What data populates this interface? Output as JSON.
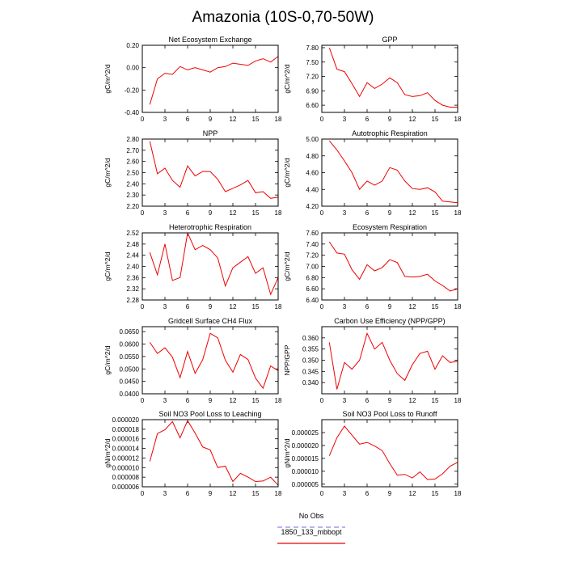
{
  "title": "Amazonia (10S-0,70-50W)",
  "legend": [
    {
      "label": "No Obs",
      "color": "#8888ee",
      "dashed": true
    },
    {
      "label": "1850_133_mbbopt",
      "color": "#ee0000",
      "dashed": false
    }
  ],
  "chart_data": [
    {
      "type": "line",
      "title": "Net Ecosystem Exchange",
      "ylabel": "gC/m^2/d",
      "xlim": [
        0,
        18
      ],
      "xticks": [
        0,
        3,
        6,
        9,
        12,
        15,
        18
      ],
      "ylim": [
        -0.4,
        0.2
      ],
      "yticks": [
        "-0.40",
        "-0.20",
        "0.00",
        "0.20"
      ],
      "x": [
        1,
        2,
        3,
        4,
        5,
        6,
        7,
        8,
        9,
        10,
        11,
        12,
        13,
        14,
        15,
        16,
        17,
        18
      ],
      "series": [
        {
          "color": "#ee0000",
          "values": [
            -0.33,
            -0.1,
            -0.05,
            -0.06,
            0.01,
            -0.02,
            0.0,
            -0.02,
            -0.04,
            0.0,
            0.01,
            0.04,
            0.03,
            0.02,
            0.06,
            0.08,
            0.05,
            0.1
          ]
        }
      ]
    },
    {
      "type": "line",
      "title": "GPP",
      "ylabel": "gC/m^2/d",
      "xlim": [
        0,
        18
      ],
      "xticks": [
        0,
        3,
        6,
        9,
        12,
        15,
        18
      ],
      "ylim": [
        6.45,
        7.85
      ],
      "yticks": [
        "6.60",
        "6.90",
        "7.20",
        "7.50",
        "7.80"
      ],
      "x": [
        1,
        2,
        3,
        4,
        5,
        6,
        7,
        8,
        9,
        10,
        11,
        12,
        13,
        14,
        15,
        16,
        17,
        18
      ],
      "series": [
        {
          "color": "#ee0000",
          "values": [
            7.8,
            7.35,
            7.3,
            7.05,
            6.78,
            7.07,
            6.95,
            7.04,
            7.17,
            7.07,
            6.82,
            6.78,
            6.8,
            6.86,
            6.7,
            6.6,
            6.56,
            6.56
          ]
        }
      ]
    },
    {
      "type": "line",
      "title": "NPP",
      "ylabel": "gC/m^2/d",
      "xlim": [
        0,
        18
      ],
      "xticks": [
        0,
        3,
        6,
        9,
        12,
        15,
        18
      ],
      "ylim": [
        2.2,
        2.8
      ],
      "yticks": [
        "2.20",
        "2.30",
        "2.40",
        "2.50",
        "2.60",
        "2.70",
        "2.80"
      ],
      "x": [
        1,
        2,
        3,
        4,
        5,
        6,
        7,
        8,
        9,
        10,
        11,
        12,
        13,
        14,
        15,
        16,
        17,
        18
      ],
      "series": [
        {
          "color": "#ee0000",
          "values": [
            2.78,
            2.49,
            2.54,
            2.43,
            2.37,
            2.56,
            2.47,
            2.51,
            2.51,
            2.44,
            2.33,
            2.36,
            2.39,
            2.43,
            2.32,
            2.33,
            2.27,
            2.28
          ]
        }
      ]
    },
    {
      "type": "line",
      "title": "Autotrophic Respiration",
      "ylabel": "gC/m^2/d",
      "xlim": [
        0,
        18
      ],
      "xticks": [
        0,
        3,
        6,
        9,
        12,
        15,
        18
      ],
      "ylim": [
        4.2,
        5.0
      ],
      "yticks": [
        "4.20",
        "4.40",
        "4.60",
        "4.80",
        "5.00"
      ],
      "x": [
        1,
        2,
        3,
        4,
        5,
        6,
        7,
        8,
        9,
        10,
        11,
        12,
        13,
        14,
        15,
        16,
        17,
        18
      ],
      "series": [
        {
          "color": "#ee0000",
          "values": [
            4.98,
            4.87,
            4.74,
            4.6,
            4.4,
            4.5,
            4.45,
            4.5,
            4.66,
            4.63,
            4.5,
            4.41,
            4.4,
            4.42,
            4.37,
            4.26,
            4.25,
            4.24
          ]
        }
      ]
    },
    {
      "type": "line",
      "title": "Heterotrophic Respiration",
      "ylabel": "gC/m^2/d",
      "xlim": [
        0,
        18
      ],
      "xticks": [
        0,
        3,
        6,
        9,
        12,
        15,
        18
      ],
      "ylim": [
        2.28,
        2.52
      ],
      "yticks": [
        "2.28",
        "2.32",
        "2.36",
        "2.40",
        "2.44",
        "2.48",
        "2.52"
      ],
      "x": [
        1,
        2,
        3,
        4,
        5,
        6,
        7,
        8,
        9,
        10,
        11,
        12,
        13,
        14,
        15,
        16,
        17,
        18
      ],
      "series": [
        {
          "color": "#ee0000",
          "values": [
            2.45,
            2.37,
            2.48,
            2.35,
            2.36,
            2.52,
            2.46,
            2.475,
            2.46,
            2.43,
            2.33,
            2.395,
            2.415,
            2.435,
            2.375,
            2.395,
            2.3,
            2.36
          ]
        }
      ]
    },
    {
      "type": "line",
      "title": "Ecosystem Respiration",
      "ylabel": "gC/m^2/d",
      "xlim": [
        0,
        18
      ],
      "xticks": [
        0,
        3,
        6,
        9,
        12,
        15,
        18
      ],
      "ylim": [
        6.4,
        7.6
      ],
      "yticks": [
        "6.40",
        "6.60",
        "6.80",
        "7.00",
        "7.20",
        "7.40",
        "7.60"
      ],
      "x": [
        1,
        2,
        3,
        4,
        5,
        6,
        7,
        8,
        9,
        10,
        11,
        12,
        13,
        14,
        15,
        16,
        17,
        18
      ],
      "series": [
        {
          "color": "#ee0000",
          "values": [
            7.44,
            7.24,
            7.22,
            6.94,
            6.77,
            7.03,
            6.92,
            6.98,
            7.12,
            7.07,
            6.82,
            6.81,
            6.82,
            6.86,
            6.74,
            6.66,
            6.56,
            6.6
          ]
        }
      ]
    },
    {
      "type": "line",
      "title": "Gridcell Surface CH4 Flux",
      "ylabel": "gC/m^2/d",
      "xlim": [
        0,
        18
      ],
      "xticks": [
        0,
        3,
        6,
        9,
        12,
        15,
        18
      ],
      "ylim": [
        0.04,
        0.067
      ],
      "yticks": [
        "0.0400",
        "0.0450",
        "0.0500",
        "0.0550",
        "0.0600",
        "0.0650"
      ],
      "x": [
        1,
        2,
        3,
        4,
        5,
        6,
        7,
        8,
        9,
        10,
        11,
        12,
        13,
        14,
        15,
        16,
        17,
        18
      ],
      "series": [
        {
          "color": "#ee0000",
          "values": [
            0.0607,
            0.0562,
            0.0585,
            0.0547,
            0.0465,
            0.057,
            0.0482,
            0.0537,
            0.0643,
            0.0625,
            0.0535,
            0.0487,
            0.0558,
            0.0538,
            0.0463,
            0.0422,
            0.0512,
            0.0493
          ]
        }
      ]
    },
    {
      "type": "line",
      "title": "Carbon Use Efficiency (NPP/GPP)",
      "ylabel": "NPP/GPP",
      "xlim": [
        0,
        18
      ],
      "xticks": [
        0,
        3,
        6,
        9,
        12,
        15,
        18
      ],
      "ylim": [
        0.335,
        0.365
      ],
      "yticks": [
        "0.340",
        "0.345",
        "0.350",
        "0.355",
        "0.360"
      ],
      "x": [
        1,
        2,
        3,
        4,
        5,
        6,
        7,
        8,
        9,
        10,
        11,
        12,
        13,
        14,
        15,
        16,
        17,
        18
      ],
      "series": [
        {
          "color": "#ee0000",
          "values": [
            0.358,
            0.337,
            0.349,
            0.346,
            0.35,
            0.362,
            0.355,
            0.358,
            0.35,
            0.344,
            0.341,
            0.348,
            0.353,
            0.354,
            0.346,
            0.352,
            0.349,
            0.3495
          ]
        }
      ]
    },
    {
      "type": "line",
      "title": "Soil NO3 Pool Loss to Leaching",
      "ylabel": "gN/m^2/d",
      "xlim": [
        0,
        18
      ],
      "xticks": [
        0,
        3,
        6,
        9,
        12,
        15,
        18
      ],
      "ylim": [
        6e-06,
        2e-05
      ],
      "yticks": [
        "0.000006",
        "0.000008",
        "0.000010",
        "0.000012",
        "0.000014",
        "0.000016",
        "0.000018",
        "0.000020"
      ],
      "x": [
        1,
        2,
        3,
        4,
        5,
        6,
        7,
        8,
        9,
        10,
        11,
        12,
        13,
        14,
        15,
        16,
        17,
        18
      ],
      "series": [
        {
          "color": "#ee0000",
          "values": [
            1.13e-05,
            1.71e-05,
            1.79e-05,
            1.96e-05,
            1.62e-05,
            1.98e-05,
            1.72e-05,
            1.43e-05,
            1.37e-05,
            1e-05,
            1.03e-05,
            7.1e-06,
            8.8e-06,
            8e-06,
            7.1e-06,
            7.2e-06,
            8e-06,
            6.3e-06
          ]
        }
      ]
    },
    {
      "type": "line",
      "title": "Soil NO3 Pool Loss to Runoff",
      "ylabel": "gN/m^2/d",
      "xlim": [
        0,
        18
      ],
      "xticks": [
        0,
        3,
        6,
        9,
        12,
        15,
        18
      ],
      "ylim": [
        4e-06,
        3e-05
      ],
      "yticks": [
        "0.000005",
        "0.000010",
        "0.000015",
        "0.000020",
        "0.000025"
      ],
      "x": [
        1,
        2,
        3,
        4,
        5,
        6,
        7,
        8,
        9,
        10,
        11,
        12,
        13,
        14,
        15,
        16,
        17,
        18
      ],
      "series": [
        {
          "color": "#ee0000",
          "values": [
            1.6e-05,
            2.3e-05,
            2.75e-05,
            2.4e-05,
            2.05e-05,
            2.12e-05,
            1.98e-05,
            1.8e-05,
            1.3e-05,
            8.5e-06,
            8.8e-06,
            7.4e-06,
            9.8e-06,
            6.8e-06,
            7e-06,
            9e-06,
            1.2e-05,
            1.35e-05
          ]
        }
      ]
    }
  ]
}
